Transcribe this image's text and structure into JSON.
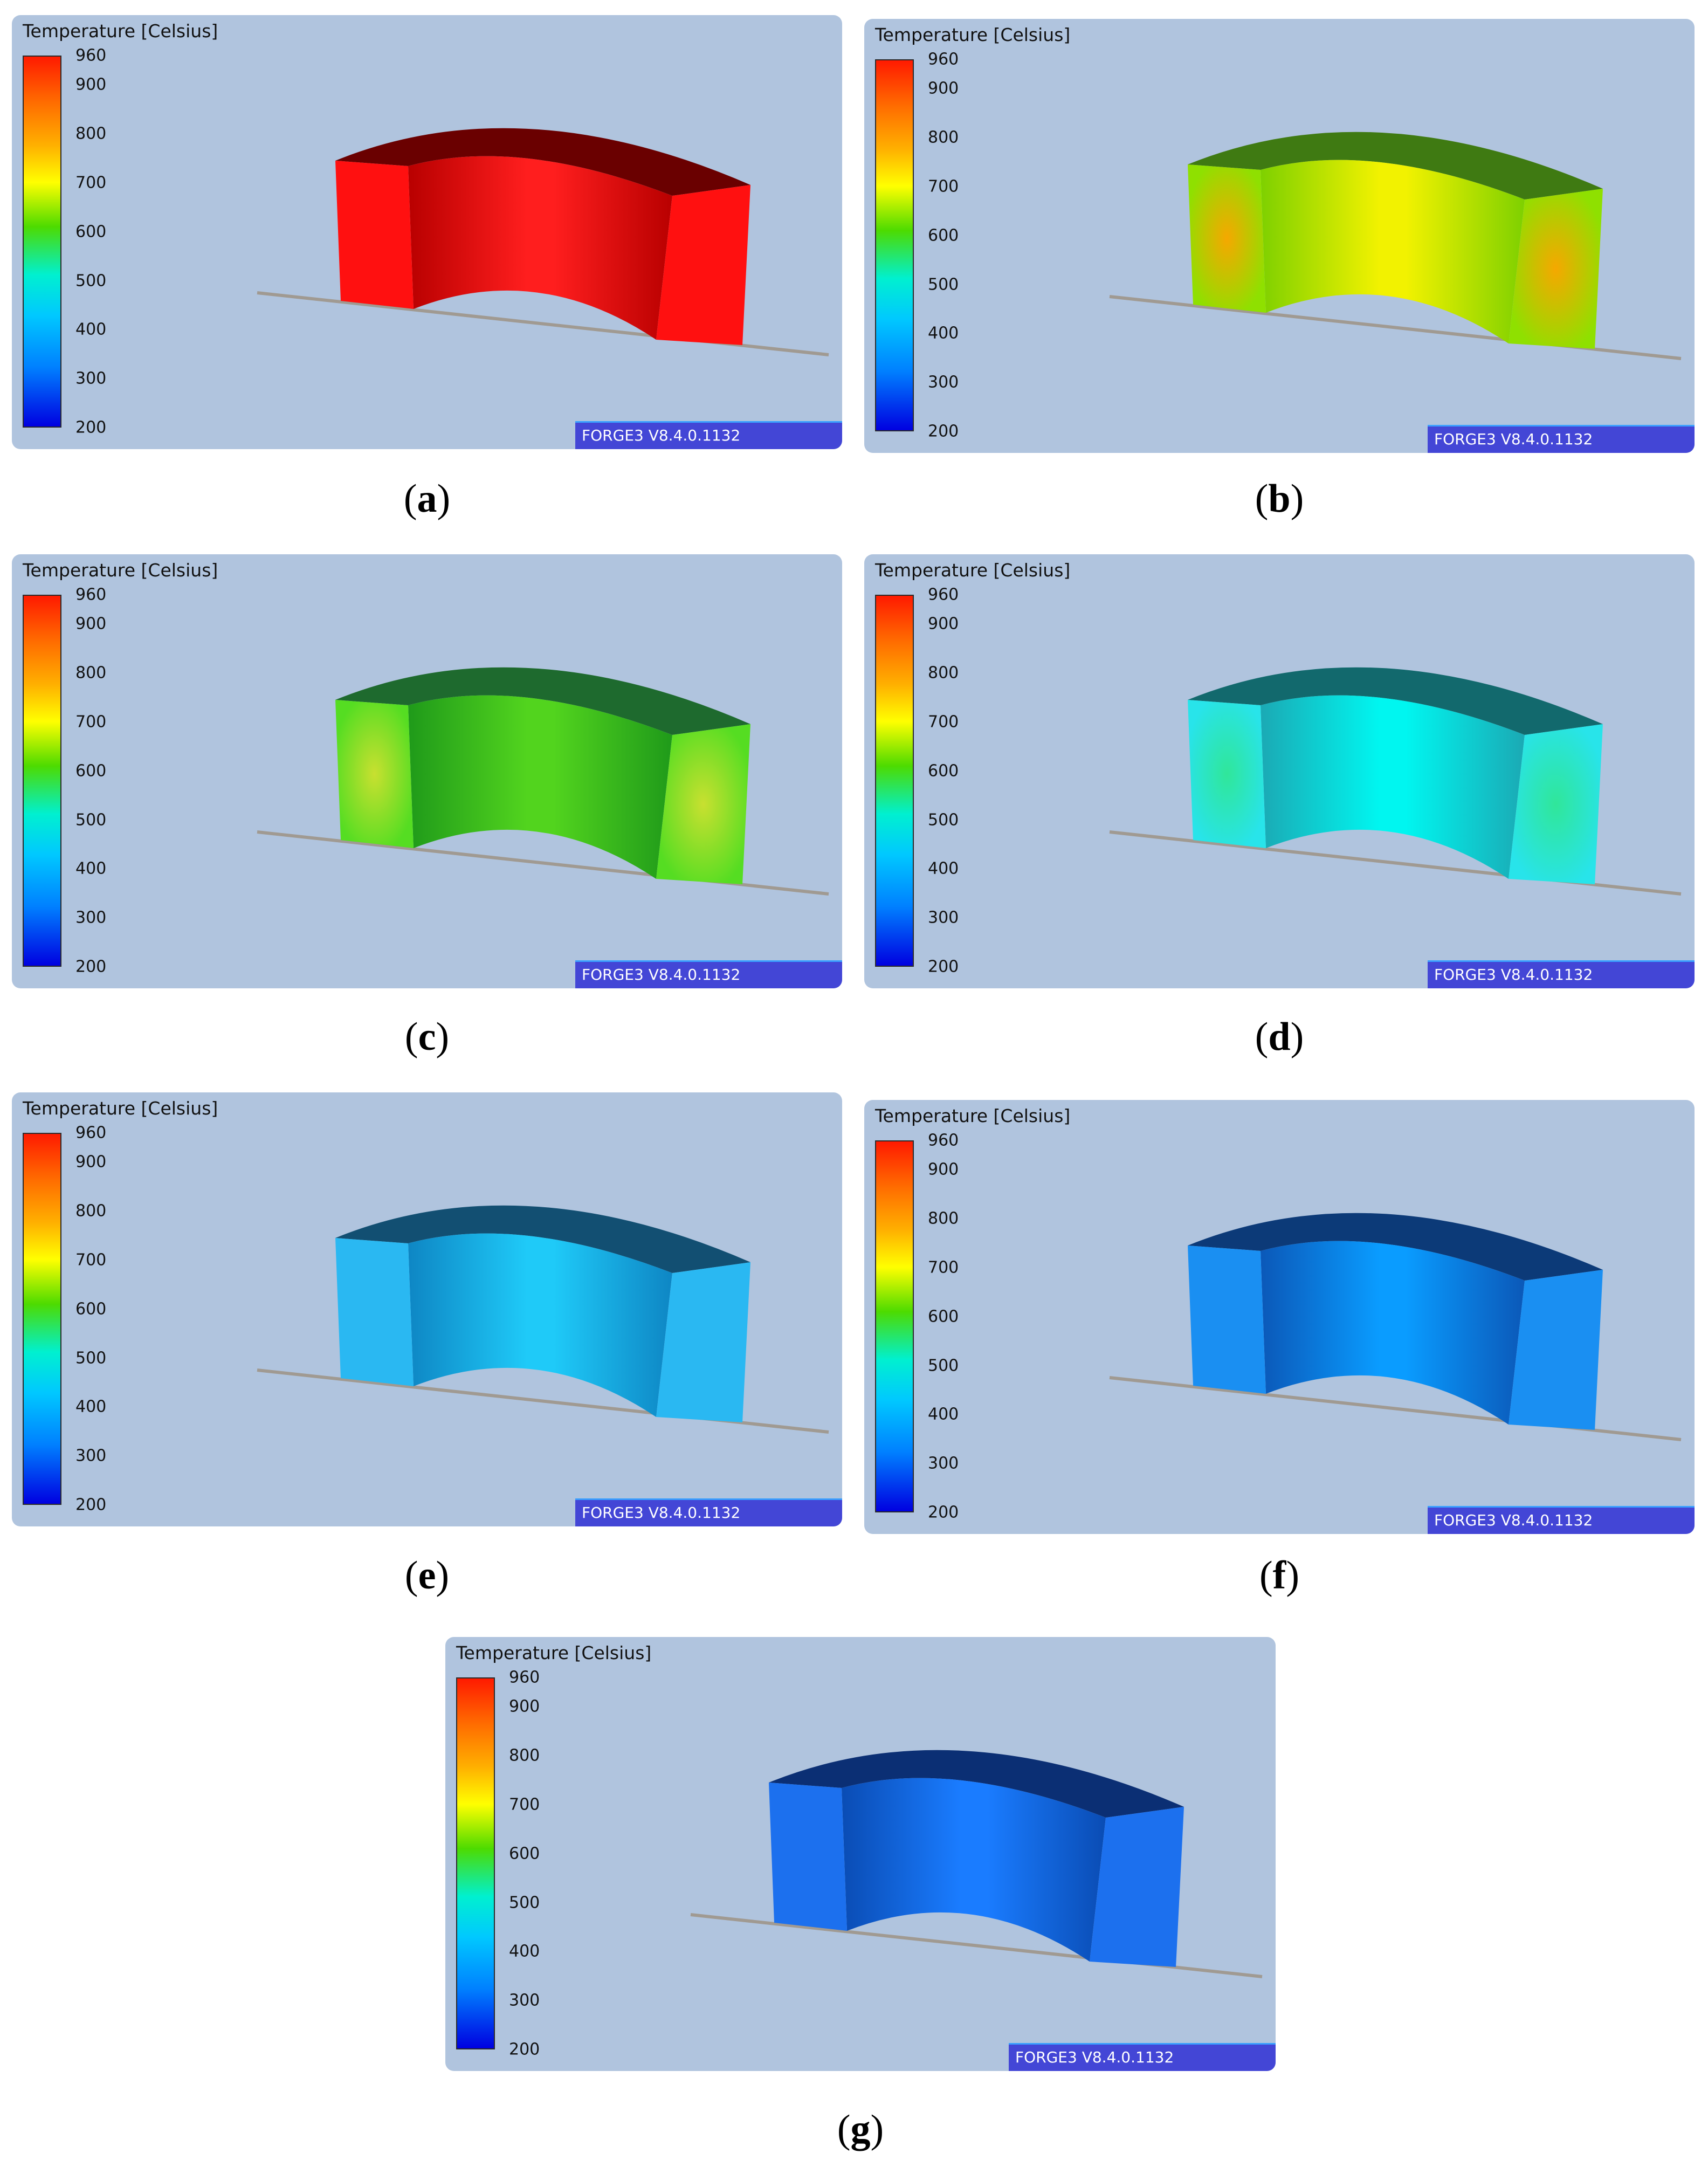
{
  "legend": {
    "title": "Temperature [Celsius]",
    "ticks": [
      "960",
      "900",
      "800",
      "700",
      "600",
      "500",
      "400",
      "300",
      "200"
    ],
    "tick_values": [
      960,
      900,
      800,
      700,
      600,
      500,
      400,
      300,
      200
    ]
  },
  "software_label": "FORGE3 V8.4.0.1132",
  "panels": [
    {
      "letter": "a",
      "colors": {
        "top": "#6a0000",
        "inner": "#ff1e1e",
        "inner_dark": "#b80000",
        "side": "#ff1010",
        "hot": "#ff1010"
      }
    },
    {
      "letter": "b",
      "colors": {
        "top": "#3f7a12",
        "inner": "#f2f200",
        "inner_dark": "#7ed000",
        "side": "#8fe000",
        "hot": "#f5a800"
      }
    },
    {
      "letter": "c",
      "colors": {
        "top": "#1e6a2e",
        "inner": "#52d41e",
        "inner_dark": "#1f9a1a",
        "side": "#55dd22",
        "hot": "#c8e030"
      }
    },
    {
      "letter": "d",
      "colors": {
        "top": "#12696d",
        "inner": "#00f6f0",
        "inner_dark": "#1ba9b4",
        "side": "#28e4ea",
        "hot": "#30e69a"
      }
    },
    {
      "letter": "e",
      "colors": {
        "top": "#124f72",
        "inner": "#1fcaf8",
        "inner_dark": "#0e86c4",
        "side": "#2ab8f2",
        "hot": "#2ab8f2"
      }
    },
    {
      "letter": "f",
      "colors": {
        "top": "#0c3a78",
        "inner": "#0a9cff",
        "inner_dark": "#0b58b8",
        "side": "#1a8ff2",
        "hot": "#1a8ff2"
      }
    },
    {
      "letter": "g",
      "colors": {
        "top": "#0b2f74",
        "inner": "#1a7cff",
        "inner_dark": "#0a4cb4",
        "side": "#1c70ee",
        "hot": "#1c70ee"
      }
    }
  ]
}
